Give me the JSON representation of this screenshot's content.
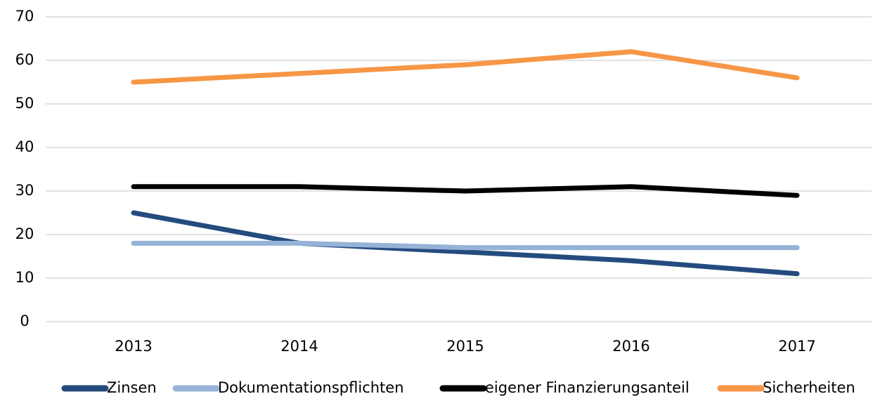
{
  "chart_data": {
    "type": "line",
    "categories": [
      "2013",
      "2014",
      "2015",
      "2016",
      "2017"
    ],
    "series": [
      {
        "name": "Zinsen",
        "color": "#244b7e",
        "values": [
          25,
          18,
          16,
          14,
          11
        ]
      },
      {
        "name": "Dokumentationspflichten",
        "color": "#95b3d7",
        "values": [
          18,
          18,
          17,
          17,
          17
        ]
      },
      {
        "name": "eigener Finanzierungsanteil",
        "color": "#000000",
        "values": [
          31,
          31,
          30,
          31,
          29
        ]
      },
      {
        "name": "Sicherheiten",
        "color": "#f79646",
        "values": [
          55,
          57,
          59,
          62,
          56
        ]
      }
    ],
    "ylim": [
      0,
      70
    ],
    "yticks": [
      0,
      10,
      20,
      30,
      40,
      50,
      60,
      70
    ],
    "grid": true,
    "legend": "bottom"
  }
}
